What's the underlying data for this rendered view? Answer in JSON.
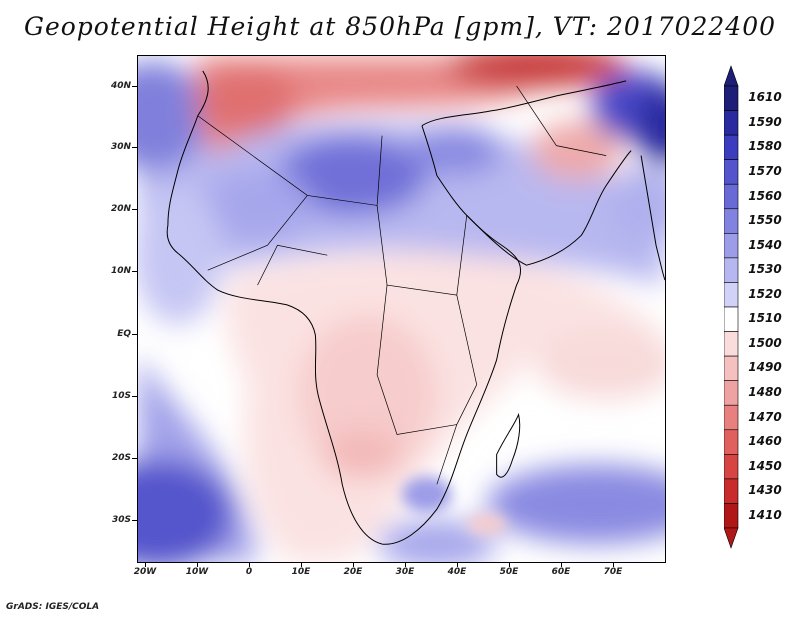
{
  "title": "Geopotential Height at 850hPa [gpm], VT: 2017022400",
  "credit": "GrADS: IGES/COLA",
  "lat_labels": [
    "40N",
    "30N",
    "20N",
    "10N",
    "EQ",
    "10S",
    "20S",
    "30S"
  ],
  "lon_labels": [
    "20W",
    "10W",
    "0",
    "10E",
    "20E",
    "30E",
    "40E",
    "50E",
    "60E",
    "70E"
  ],
  "legend": {
    "levels": [
      "1610",
      "1590",
      "1580",
      "1570",
      "1560",
      "1550",
      "1540",
      "1530",
      "1520",
      "1510",
      "1500",
      "1490",
      "1480",
      "1470",
      "1460",
      "1450",
      "1430",
      "1410"
    ],
    "colors": [
      "#1e1e78",
      "#2a2aa0",
      "#3c3cbe",
      "#5454cc",
      "#6a6ad6",
      "#8282e0",
      "#9c9ce8",
      "#b6b6f0",
      "#d2d2f8",
      "#ffffff",
      "#fadcdc",
      "#f4c0c0",
      "#eea2a2",
      "#e88080",
      "#e06060",
      "#d64444",
      "#c82c2c",
      "#b01818"
    ]
  }
}
